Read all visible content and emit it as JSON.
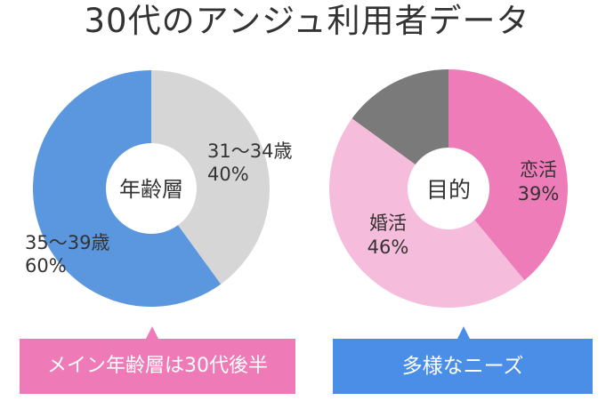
{
  "title": "30代のアンジュ利用者データ",
  "colors": {
    "age_main": "#5b97df",
    "age_other": "#d6d6d6",
    "purpose_love": "#ee7cb8",
    "purpose_marriage": "#f6bcdb",
    "purpose_other": "#7b7a7b",
    "callout_pink": "#ee7ab8",
    "callout_blue": "#4a8ee8"
  },
  "chart_data": [
    {
      "type": "pie",
      "center_label": "年齢層",
      "slices": [
        {
          "name": "31～34歳",
          "label": "31～34歳",
          "value_label": "40%",
          "value": 40,
          "color": "#d6d6d6"
        },
        {
          "name": "35～39歳",
          "label": "35～39歳",
          "value_label": "60%",
          "value": 60,
          "color": "#5b97df"
        }
      ]
    },
    {
      "type": "pie",
      "center_label": "目的",
      "slices": [
        {
          "name": "恋活",
          "label": "恋活",
          "value_label": "39%",
          "value": 39,
          "color": "#ee7cb8"
        },
        {
          "name": "婚活",
          "label": "婚活",
          "value_label": "46%",
          "value": 46,
          "color": "#f6bcdb"
        },
        {
          "name": "",
          "label": "",
          "value_label": "",
          "value": 15,
          "color": "#7b7a7b"
        }
      ]
    }
  ],
  "callouts": {
    "left": "メイン年齢層は30代後半",
    "right": "多様なニーズ"
  }
}
